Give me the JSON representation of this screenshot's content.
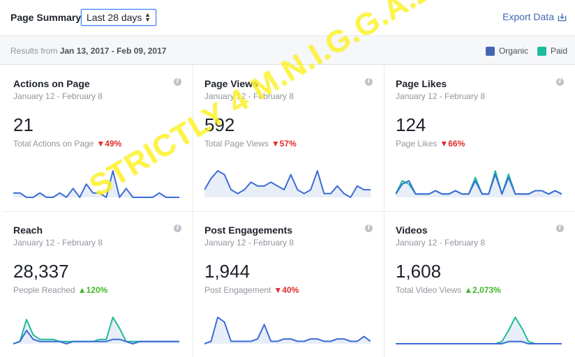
{
  "header": {
    "title": "Page Summary",
    "range_label": "Last 28 days",
    "export_label": "Export Data"
  },
  "subbar": {
    "results_prefix": "Results from ",
    "results_range": "Jan 13, 2017 - Feb 09, 2017",
    "legend": [
      {
        "label": "Organic",
        "color": "#4267b2"
      },
      {
        "label": "Paid",
        "color": "#1fbc9c"
      }
    ]
  },
  "colors": {
    "organic": "#3b6bd6",
    "paid": "#1fbc9c",
    "fill": "#e8eef8",
    "down": "#e02d2d",
    "up": "#42b72a"
  },
  "cards": [
    {
      "title": "Actions on Page",
      "dates": "January 12 - February 8",
      "value": "21",
      "metric": "Total Actions on Page",
      "change": "49%",
      "direction": "down",
      "series": [
        {
          "kind": "organic",
          "values": [
            1,
            1,
            0,
            0,
            1,
            0,
            0,
            1,
            0,
            2,
            0,
            3,
            1,
            1,
            0,
            6,
            0,
            2,
            0,
            0,
            0,
            0,
            1,
            0,
            0,
            0
          ]
        }
      ]
    },
    {
      "title": "Page Views",
      "dates": "January 12 - February 8",
      "value": "592",
      "metric": "Total Page Views",
      "change": "57%",
      "direction": "down",
      "series": [
        {
          "kind": "organic",
          "values": [
            2,
            5,
            7,
            6,
            2,
            1,
            2,
            4,
            3,
            3,
            4,
            3,
            2,
            6,
            2,
            1,
            2,
            7,
            1,
            1,
            3,
            1,
            0,
            3,
            2,
            2
          ]
        }
      ]
    },
    {
      "title": "Page Likes",
      "dates": "January 12 - February 8",
      "value": "124",
      "metric": "Page Likes",
      "change": "66%",
      "direction": "down",
      "series": [
        {
          "kind": "organic",
          "values": [
            1,
            4,
            5,
            1,
            1,
            1,
            2,
            1,
            1,
            2,
            1,
            1,
            5,
            1,
            1,
            7,
            1,
            6,
            1,
            1,
            1,
            2,
            2,
            1,
            2,
            1
          ]
        },
        {
          "kind": "paid",
          "values": [
            1,
            5,
            4,
            1,
            1,
            1,
            2,
            1,
            1,
            2,
            1,
            1,
            6,
            1,
            1,
            8,
            1,
            7,
            1,
            1,
            1,
            2,
            2,
            1,
            2,
            1
          ]
        }
      ]
    },
    {
      "title": "Reach",
      "dates": "January 12 - February 8",
      "value": "28,337",
      "metric": "People Reached",
      "change": "120%",
      "direction": "up",
      "series": [
        {
          "kind": "organic",
          "values": [
            0,
            1,
            6,
            2,
            1,
            1,
            1,
            1,
            0,
            1,
            1,
            1,
            1,
            1,
            1,
            2,
            2,
            1,
            0,
            1,
            1,
            1,
            1,
            1,
            1,
            1
          ]
        },
        {
          "kind": "paid",
          "values": [
            0,
            1,
            11,
            4,
            2,
            2,
            2,
            1,
            1,
            1,
            1,
            1,
            1,
            2,
            2,
            12,
            7,
            1,
            1,
            1,
            1,
            1,
            1,
            1,
            1,
            1
          ]
        }
      ]
    },
    {
      "title": "Post Engagements",
      "dates": "January 12 - February 8",
      "value": "1,944",
      "metric": "Post Engagement",
      "change": "40%",
      "direction": "down",
      "series": [
        {
          "kind": "organic",
          "values": [
            0,
            1,
            11,
            9,
            1,
            1,
            1,
            1,
            2,
            8,
            1,
            1,
            2,
            2,
            1,
            1,
            2,
            2,
            1,
            1,
            2,
            2,
            1,
            1,
            3,
            1
          ]
        }
      ]
    },
    {
      "title": "Videos",
      "dates": "January 12 - February 8",
      "value": "1,608",
      "metric": "Total Video Views",
      "change": "2,073%",
      "direction": "up",
      "series": [
        {
          "kind": "organic",
          "values": [
            0,
            0,
            0,
            0,
            0,
            0,
            0,
            0,
            0,
            0,
            0,
            0,
            0,
            0,
            0,
            0,
            0,
            1,
            1,
            1,
            0,
            0,
            0,
            0,
            0,
            0
          ]
        },
        {
          "kind": "paid",
          "values": [
            0,
            0,
            0,
            0,
            0,
            0,
            0,
            0,
            0,
            0,
            0,
            0,
            0,
            0,
            0,
            0,
            1,
            6,
            12,
            7,
            1,
            0,
            0,
            0,
            0,
            0
          ]
        }
      ]
    }
  ],
  "watermark": "STRICTLY 4 M.N.I.G.G.A.Z"
}
